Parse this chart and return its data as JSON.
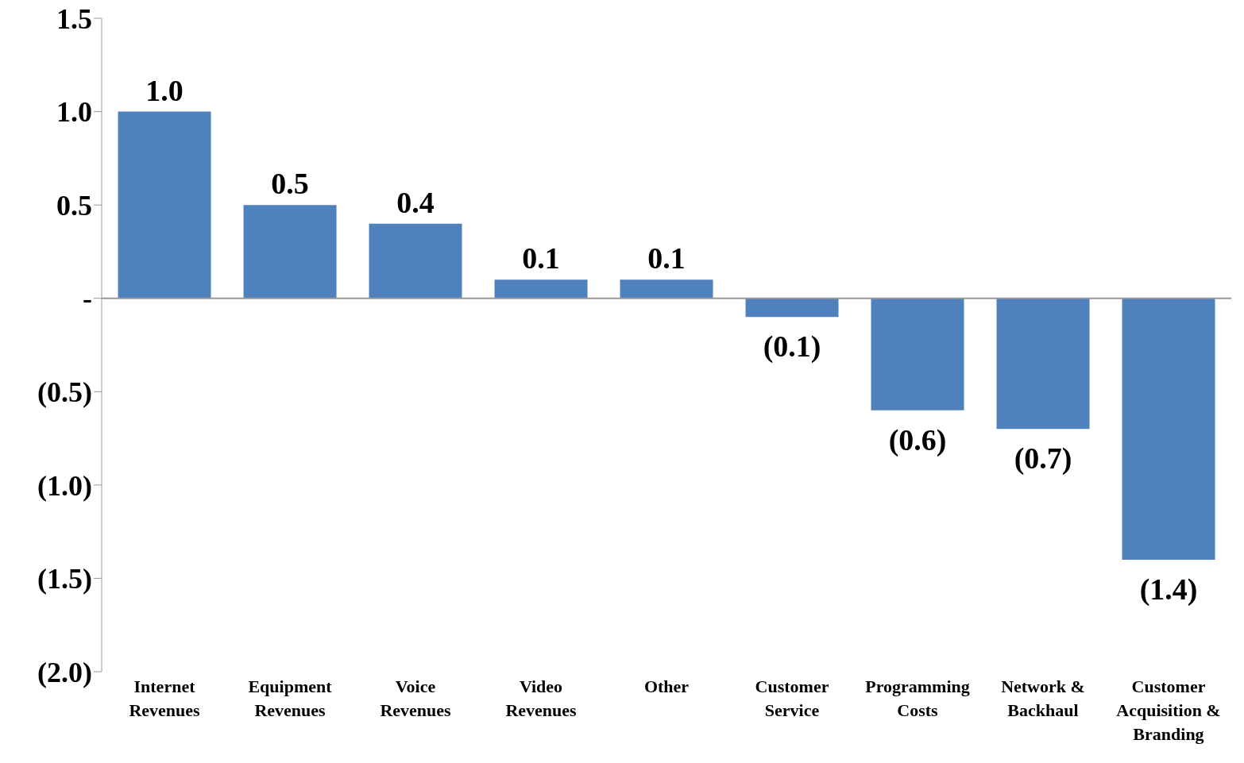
{
  "chart_data": {
    "type": "bar",
    "categories": [
      "Internet Revenues",
      "Equipment Revenues",
      "Voice Revenues",
      "Video Revenues",
      "Other",
      "Customer Service",
      "Programming Costs",
      "Network & Backhaul",
      "Customer Acquisition & Branding"
    ],
    "values": [
      1.0,
      0.5,
      0.4,
      0.1,
      0.1,
      -0.1,
      -0.6,
      -0.7,
      -1.4
    ],
    "value_labels": [
      "1.0",
      "0.5",
      "0.4",
      "0.1",
      "0.1",
      "(0.1)",
      "(0.6)",
      "(0.7)",
      "(1.4)"
    ],
    "color": "#4f81bd",
    "ylim": [
      -2.0,
      1.5
    ],
    "yticks": [
      {
        "value": 1.5,
        "label": "1.5"
      },
      {
        "value": 1.0,
        "label": "1.0"
      },
      {
        "value": 0.5,
        "label": "0.5"
      },
      {
        "value": 0,
        "label": "-"
      },
      {
        "value": -0.5,
        "label": "(0.5)"
      },
      {
        "value": -1.0,
        "label": "(1.0)"
      },
      {
        "value": -1.5,
        "label": "(1.5)"
      },
      {
        "value": -2.0,
        "label": "(2.0)"
      }
    ],
    "legend": false
  }
}
